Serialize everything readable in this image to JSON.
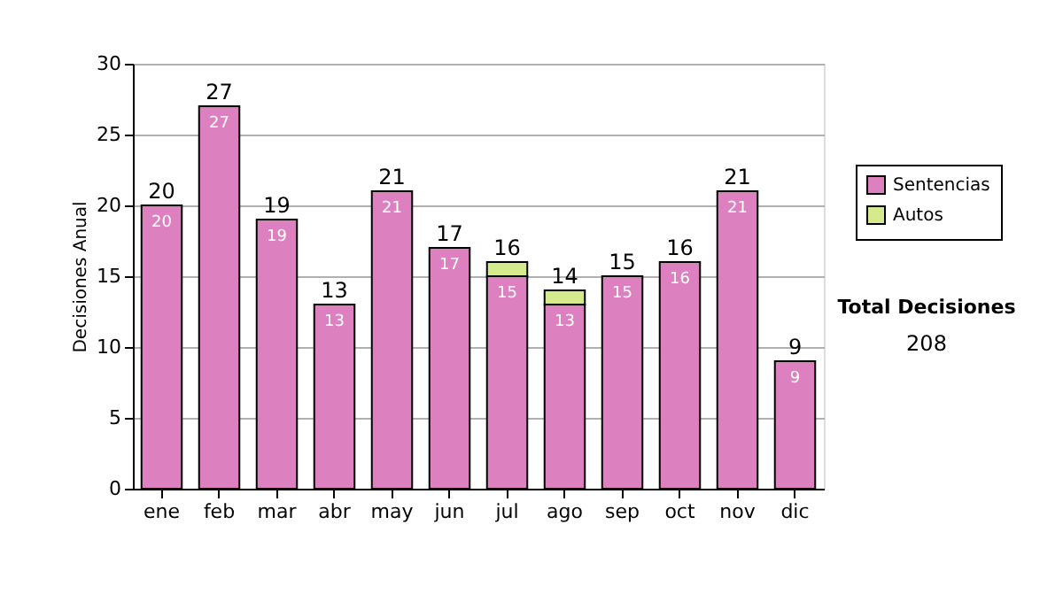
{
  "chart_data": {
    "type": "bar",
    "stacked": true,
    "ylabel": "Decisiones Anual",
    "categories": [
      "ene",
      "feb",
      "mar",
      "abr",
      "may",
      "jun",
      "jul",
      "ago",
      "sep",
      "oct",
      "nov",
      "dic"
    ],
    "series": [
      {
        "name": "Sentencias",
        "color": "#dd80c0",
        "values": [
          20,
          27,
          19,
          13,
          21,
          17,
          15,
          13,
          15,
          16,
          21,
          9
        ],
        "value_labels": [
          "20",
          "27",
          "19",
          "13",
          "21",
          "17",
          "15",
          "13",
          "15",
          "16",
          "21",
          "9"
        ]
      },
      {
        "name": "Autos",
        "color": "#d4ea8c",
        "values": [
          null,
          null,
          null,
          null,
          null,
          null,
          1,
          1,
          null,
          null,
          null,
          null
        ]
      }
    ],
    "totals": [
      "20",
      "27",
      "19",
      "13",
      "21",
      "17",
      "16",
      "14",
      "15",
      "16",
      "21",
      "9"
    ],
    "ylim": [
      0,
      30
    ],
    "yticks": [
      0,
      5,
      10,
      15,
      20,
      25,
      30
    ],
    "grid": "y",
    "legend": "right",
    "annotations": [
      "Total Decisiones",
      "208"
    ]
  }
}
